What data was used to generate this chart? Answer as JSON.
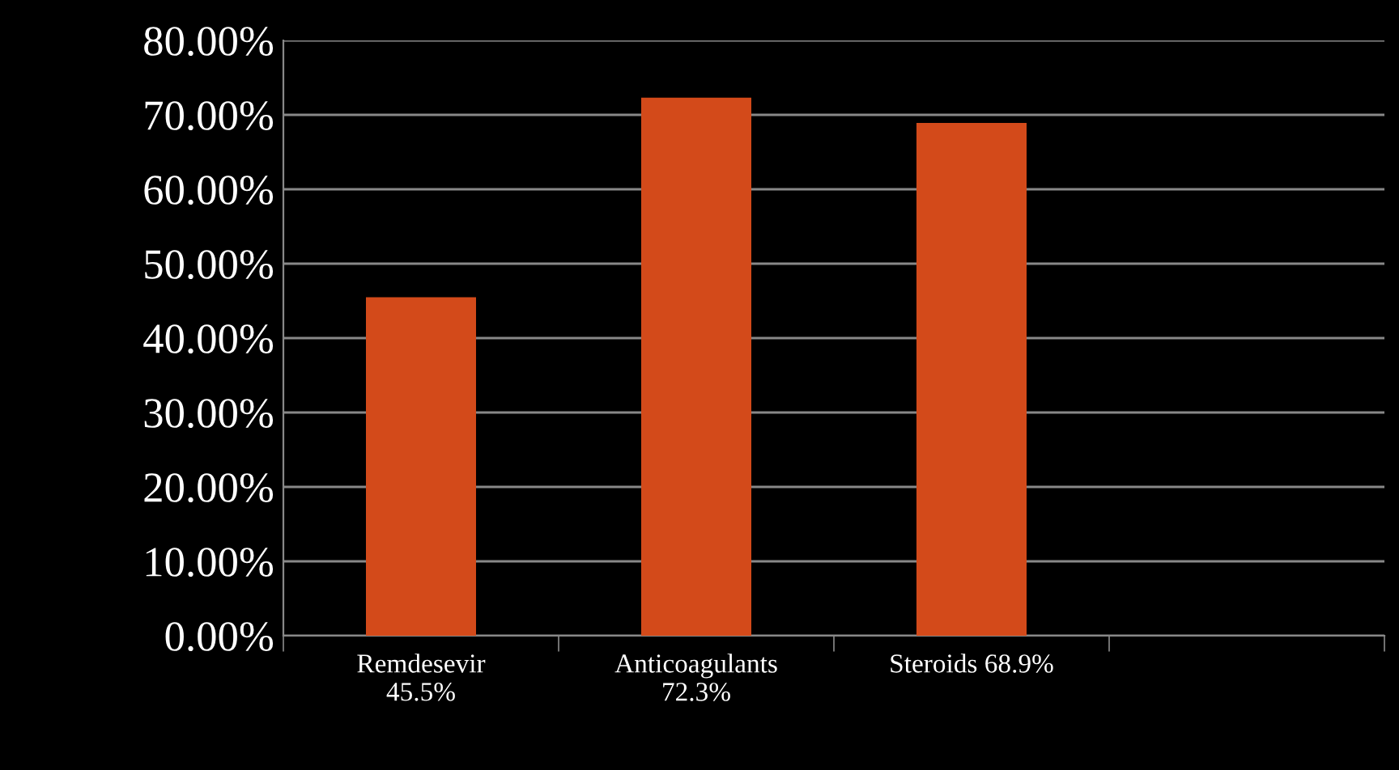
{
  "chart_data": {
    "type": "bar",
    "categories": [
      "Remdesevir\n45.5%",
      "Anticoagulants\n72.3%",
      "Steroids 68.9%",
      null
    ],
    "values": [
      45.5,
      72.3,
      68.9,
      null
    ],
    "color": "#d34a1a",
    "ylim": [
      0,
      80
    ],
    "yticks": [
      {
        "value": 0,
        "label": "0.00%"
      },
      {
        "value": 10,
        "label": "10.00%"
      },
      {
        "value": 20,
        "label": "20.00%"
      },
      {
        "value": 30,
        "label": "30.00%"
      },
      {
        "value": 40,
        "label": "40.00%"
      },
      {
        "value": 50,
        "label": "50.00%"
      },
      {
        "value": 60,
        "label": "60.00%"
      },
      {
        "value": 70,
        "label": "70.00%"
      },
      {
        "value": 80,
        "label": "80.00%"
      }
    ],
    "grid": "y",
    "legend": false
  }
}
